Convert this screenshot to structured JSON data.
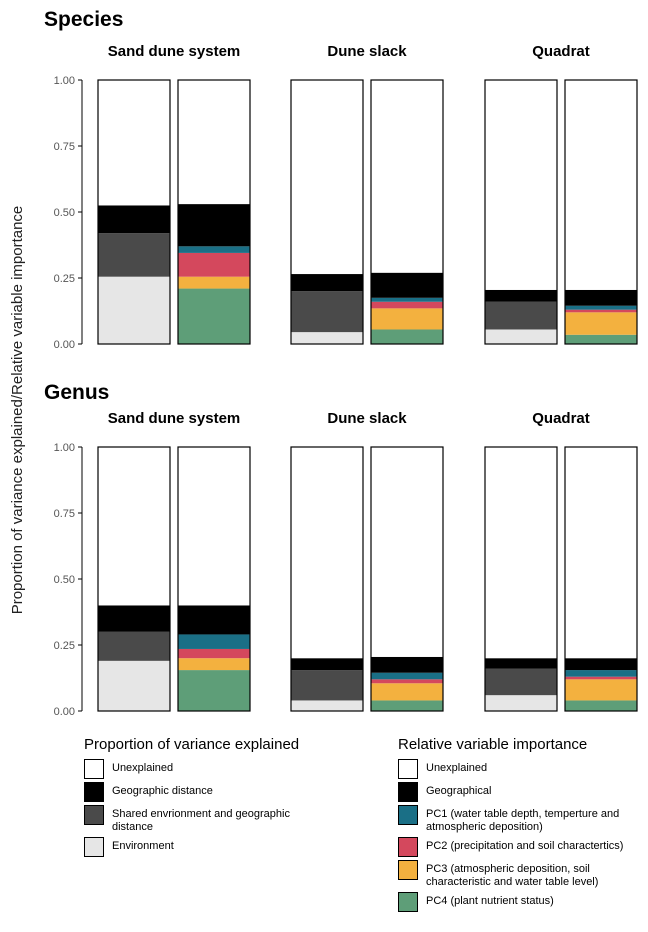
{
  "colors": {
    "unexplained": "#ffffff",
    "geographic": "#000000",
    "shared": "#4a4a4a",
    "environment": "#e6e6e6",
    "pc1": "#1a6f86",
    "pc2": "#d4485d",
    "pc3": "#f3b13f",
    "pc4": "#5e9e78"
  },
  "y_axis_label": "Proportion of variance explained/Relative variable importance",
  "y_ticks": [
    "1.00",
    "0.75",
    "0.50",
    "0.25",
    "0.00"
  ],
  "legends": {
    "left": {
      "title": "Proportion of variance explained",
      "items": [
        {
          "key": "unexplained",
          "label": "Unexplained"
        },
        {
          "key": "geographic",
          "label": "Geographic distance"
        },
        {
          "key": "shared",
          "label": "Shared envrionment and geographic distance"
        },
        {
          "key": "environment",
          "label": "Environment"
        }
      ]
    },
    "right": {
      "title": "Relative variable importance",
      "items": [
        {
          "key": "unexplained",
          "label": "Unexplained"
        },
        {
          "key": "geographic",
          "label": "Geographical"
        },
        {
          "key": "pc1",
          "label": "PC1 (water table depth, temperture and atmospheric deposition)"
        },
        {
          "key": "pc2",
          "label": "PC2 (precipitation and soil charactertics)"
        },
        {
          "key": "pc3",
          "label": "PC3 (atmospheric deposition, soil characteristic and water table level)"
        },
        {
          "key": "pc4",
          "label": "PC4 (plant nutrient status)"
        }
      ]
    }
  },
  "chart_data": {
    "type": "bar",
    "stacked": true,
    "ylim": [
      0,
      1
    ],
    "ylabel": "Proportion of variance explained/Relative variable importance",
    "sections": [
      {
        "title": "Species",
        "panels": [
          {
            "title": "Sand dune system",
            "bars": [
              {
                "segments": [
                  {
                    "key": "environment",
                    "value": 0.255
                  },
                  {
                    "key": "shared",
                    "value": 0.165
                  },
                  {
                    "key": "geographic",
                    "value": 0.105
                  },
                  {
                    "key": "unexplained",
                    "value": 0.475
                  }
                ]
              },
              {
                "segments": [
                  {
                    "key": "pc4",
                    "value": 0.21
                  },
                  {
                    "key": "pc3",
                    "value": 0.045
                  },
                  {
                    "key": "pc2",
                    "value": 0.09
                  },
                  {
                    "key": "pc1",
                    "value": 0.025
                  },
                  {
                    "key": "geographic",
                    "value": 0.16
                  },
                  {
                    "key": "unexplained",
                    "value": 0.47
                  }
                ]
              }
            ]
          },
          {
            "title": "Dune slack",
            "bars": [
              {
                "segments": [
                  {
                    "key": "environment",
                    "value": 0.045
                  },
                  {
                    "key": "shared",
                    "value": 0.155
                  },
                  {
                    "key": "geographic",
                    "value": 0.065
                  },
                  {
                    "key": "unexplained",
                    "value": 0.735
                  }
                ]
              },
              {
                "segments": [
                  {
                    "key": "pc4",
                    "value": 0.055
                  },
                  {
                    "key": "pc3",
                    "value": 0.08
                  },
                  {
                    "key": "pc2",
                    "value": 0.025
                  },
                  {
                    "key": "pc1",
                    "value": 0.015
                  },
                  {
                    "key": "geographic",
                    "value": 0.095
                  },
                  {
                    "key": "unexplained",
                    "value": 0.73
                  }
                ]
              }
            ]
          },
          {
            "title": "Quadrat",
            "bars": [
              {
                "segments": [
                  {
                    "key": "environment",
                    "value": 0.055
                  },
                  {
                    "key": "shared",
                    "value": 0.105
                  },
                  {
                    "key": "geographic",
                    "value": 0.045
                  },
                  {
                    "key": "unexplained",
                    "value": 0.795
                  }
                ]
              },
              {
                "segments": [
                  {
                    "key": "pc4",
                    "value": 0.035
                  },
                  {
                    "key": "pc3",
                    "value": 0.085
                  },
                  {
                    "key": "pc2",
                    "value": 0.01
                  },
                  {
                    "key": "pc1",
                    "value": 0.015
                  },
                  {
                    "key": "geographic",
                    "value": 0.06
                  },
                  {
                    "key": "unexplained",
                    "value": 0.795
                  }
                ]
              }
            ]
          }
        ]
      },
      {
        "title": "Genus",
        "panels": [
          {
            "title": "Sand dune system",
            "bars": [
              {
                "segments": [
                  {
                    "key": "environment",
                    "value": 0.19
                  },
                  {
                    "key": "shared",
                    "value": 0.11
                  },
                  {
                    "key": "geographic",
                    "value": 0.1
                  },
                  {
                    "key": "unexplained",
                    "value": 0.6
                  }
                ]
              },
              {
                "segments": [
                  {
                    "key": "pc4",
                    "value": 0.155
                  },
                  {
                    "key": "pc3",
                    "value": 0.045
                  },
                  {
                    "key": "pc2",
                    "value": 0.035
                  },
                  {
                    "key": "pc1",
                    "value": 0.055
                  },
                  {
                    "key": "geographic",
                    "value": 0.11
                  },
                  {
                    "key": "unexplained",
                    "value": 0.6
                  }
                ]
              }
            ]
          },
          {
            "title": "Dune slack",
            "bars": [
              {
                "segments": [
                  {
                    "key": "environment",
                    "value": 0.04
                  },
                  {
                    "key": "shared",
                    "value": 0.115
                  },
                  {
                    "key": "geographic",
                    "value": 0.045
                  },
                  {
                    "key": "unexplained",
                    "value": 0.8
                  }
                ]
              },
              {
                "segments": [
                  {
                    "key": "pc4",
                    "value": 0.04
                  },
                  {
                    "key": "pc3",
                    "value": 0.065
                  },
                  {
                    "key": "pc2",
                    "value": 0.015
                  },
                  {
                    "key": "pc1",
                    "value": 0.025
                  },
                  {
                    "key": "geographic",
                    "value": 0.06
                  },
                  {
                    "key": "unexplained",
                    "value": 0.795
                  }
                ]
              }
            ]
          },
          {
            "title": "Quadrat",
            "bars": [
              {
                "segments": [
                  {
                    "key": "environment",
                    "value": 0.06
                  },
                  {
                    "key": "shared",
                    "value": 0.1
                  },
                  {
                    "key": "geographic",
                    "value": 0.04
                  },
                  {
                    "key": "unexplained",
                    "value": 0.8
                  }
                ]
              },
              {
                "segments": [
                  {
                    "key": "pc4",
                    "value": 0.04
                  },
                  {
                    "key": "pc3",
                    "value": 0.08
                  },
                  {
                    "key": "pc2",
                    "value": 0.01
                  },
                  {
                    "key": "pc1",
                    "value": 0.025
                  },
                  {
                    "key": "geographic",
                    "value": 0.045
                  },
                  {
                    "key": "unexplained",
                    "value": 0.8
                  }
                ]
              }
            ]
          }
        ]
      }
    ]
  }
}
